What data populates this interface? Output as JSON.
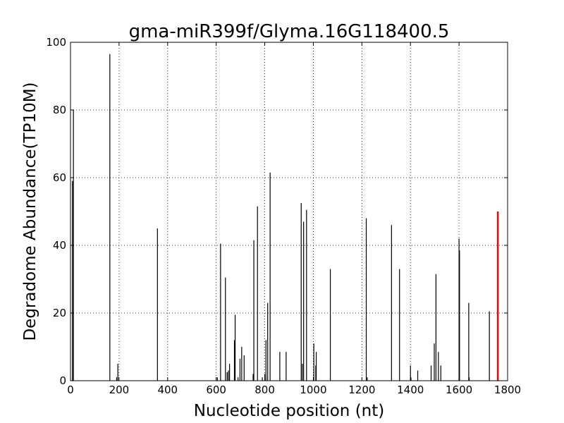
{
  "chart_data": {
    "type": "bar",
    "title": "gma-miR399f/Glyma.16G118400.5",
    "xlabel": "Nucleotide position (nt)",
    "ylabel": "Degradome Abundance(TP10M)",
    "xlim": [
      0,
      1800
    ],
    "ylim": [
      0,
      100
    ],
    "xticks": [
      0,
      200,
      400,
      600,
      800,
      1000,
      1200,
      1400,
      1600,
      1800
    ],
    "yticks": [
      0,
      20,
      40,
      60,
      80,
      100
    ],
    "grid": true,
    "grid_style": "dotted",
    "bar_color": "#000000",
    "highlight_color": "#ff0000",
    "series": [
      {
        "values": [
          [
            8,
            59
          ],
          [
            12,
            80
          ],
          [
            162,
            96.5
          ],
          [
            190,
            1
          ],
          [
            195,
            5
          ],
          [
            358,
            45
          ],
          [
            605,
            1
          ],
          [
            618,
            40.5
          ],
          [
            638,
            30.5
          ],
          [
            645,
            2.5
          ],
          [
            650,
            3
          ],
          [
            655,
            5
          ],
          [
            675,
            12
          ],
          [
            678,
            19.5
          ],
          [
            690,
            1
          ],
          [
            698,
            6.5
          ],
          [
            705,
            10
          ],
          [
            715,
            7.5
          ],
          [
            752,
            2
          ],
          [
            755,
            41.5
          ],
          [
            770,
            51.5
          ],
          [
            790,
            1
          ],
          [
            800,
            2
          ],
          [
            805,
            12
          ],
          [
            812,
            23
          ],
          [
            822,
            61.5
          ],
          [
            862,
            8.5
          ],
          [
            888,
            8.5
          ],
          [
            950,
            52.5
          ],
          [
            955,
            5
          ],
          [
            960,
            47
          ],
          [
            972,
            50.5
          ],
          [
            1002,
            11
          ],
          [
            1010,
            4.5
          ],
          [
            1012,
            8.5
          ],
          [
            1070,
            33
          ],
          [
            1218,
            48
          ],
          [
            1222,
            1
          ],
          [
            1322,
            46
          ],
          [
            1355,
            33
          ],
          [
            1400,
            4.5
          ],
          [
            1402,
            1
          ],
          [
            1430,
            3
          ],
          [
            1485,
            4.5
          ],
          [
            1498,
            11
          ],
          [
            1505,
            31.5
          ],
          [
            1515,
            8.5
          ],
          [
            1525,
            4.5
          ],
          [
            1600,
            42
          ],
          [
            1602,
            38.5
          ],
          [
            1640,
            23
          ],
          [
            1642,
            1
          ],
          [
            1725,
            20.5
          ]
        ]
      },
      {
        "highlight": true,
        "values": [
          [
            1760,
            50
          ]
        ]
      }
    ]
  }
}
